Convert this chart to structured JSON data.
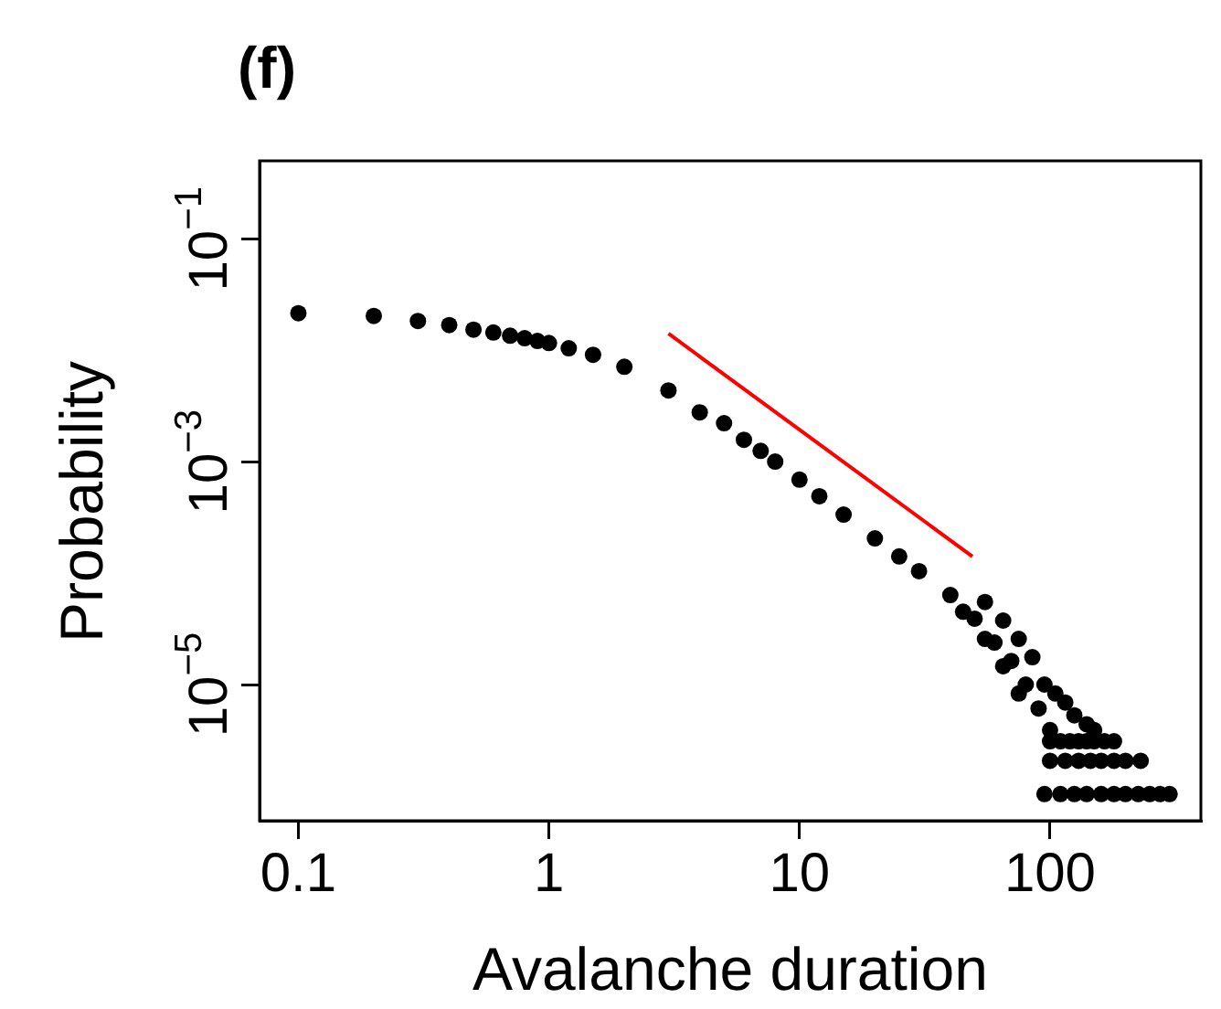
{
  "chart_data": {
    "type": "scatter",
    "title": "(f)",
    "xlabel": "Avalanche duration",
    "ylabel": "Probability",
    "log": "xy",
    "grid": false,
    "legend": false,
    "marker": "circle",
    "xlim": [
      0.07,
      400
    ],
    "ylim": [
      6e-07,
      0.5
    ],
    "xticks": [
      0.1,
      1,
      10,
      100
    ],
    "yticks": [
      {
        "value": 0.1,
        "label": "10$^{−1}$"
      },
      {
        "value": 0.001,
        "label": "10$^{−3}$"
      },
      {
        "value": 1e-05,
        "label": "10$^{−5}$"
      }
    ],
    "series": [
      {
        "color": "#000000",
        "x": [
          0.1,
          0.2,
          0.3,
          0.4,
          0.5,
          0.6,
          0.7,
          0.8,
          0.9,
          1,
          1.2,
          1.5,
          2,
          3,
          4,
          5,
          6,
          7,
          8,
          10,
          12,
          15,
          20,
          25,
          30,
          40,
          45,
          50,
          55,
          55,
          60,
          65,
          65,
          70,
          75,
          75,
          80,
          85,
          90,
          95,
          100,
          105,
          115,
          125,
          140,
          150,
          100,
          110,
          120,
          130,
          140,
          150,
          165,
          180,
          100,
          115,
          130,
          145,
          160,
          180,
          200,
          230,
          95,
          110,
          125,
          140,
          160,
          180,
          200,
          225,
          250,
          275,
          300
        ],
        "values": [
          0.0215,
          0.0203,
          0.0183,
          0.0168,
          0.0153,
          0.0144,
          0.0135,
          0.0128,
          0.0121,
          0.0116,
          0.0104,
          0.0091,
          0.0071,
          0.00436,
          0.00277,
          0.00221,
          0.00157,
          0.00125,
          0.001,
          0.00069,
          0.00049,
          0.000335,
          0.000205,
          0.000141,
          0.000104,
          6.35e-05,
          4.5e-05,
          3.9e-05,
          5.5e-05,
          2.57e-05,
          2.38e-05,
          3.75e-05,
          1.46e-05,
          1.63e-05,
          2.57e-05,
          8.3e-06,
          1e-05,
          1.76e-05,
          6.1e-06,
          1e-05,
          3.9e-06,
          8.3e-06,
          6.9e-06,
          5.3e-06,
          4.4e-06,
          3.9e-06,
          3.1e-06,
          3.1e-06,
          3.1e-06,
          3.1e-06,
          3.1e-06,
          3.1e-06,
          3.1e-06,
          3.1e-06,
          2.07e-06,
          2.07e-06,
          2.07e-06,
          2.07e-06,
          2.07e-06,
          2.07e-06,
          2.07e-06,
          2.07e-06,
          1.04e-06,
          1.04e-06,
          1.04e-06,
          1.04e-06,
          1.04e-06,
          1.04e-06,
          1.04e-06,
          1.04e-06,
          1.04e-06,
          1.04e-06,
          1.04e-06
        ]
      },
      {
        "type": "line",
        "color": "#ff0000",
        "marker": "none",
        "x": [
          3,
          49
        ],
        "values": [
          0.0141,
          0.000141
        ]
      }
    ]
  }
}
